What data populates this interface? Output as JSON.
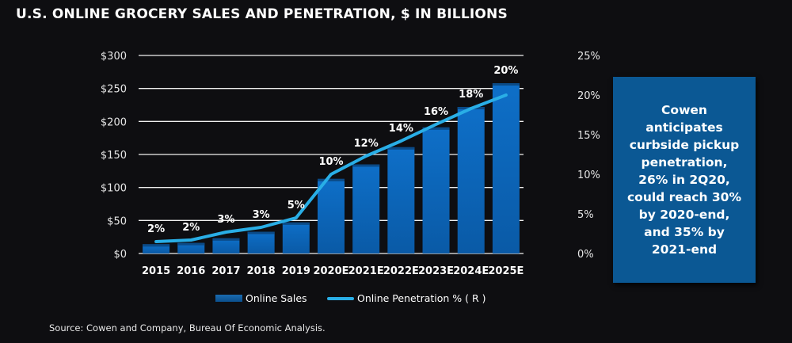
{
  "title": "U.S. ONLINE GROCERY SALES AND PENETRATION, $ IN BILLIONS",
  "callout": "Cowen anticipates curbside pickup penetration, 26% in 2Q20, could reach 30% by 2020-end, and 35% by 2021-end",
  "source": "Source: Cowen and Company, Bureau Of Economic Analysis.",
  "colors": {
    "background": "#0e0e11",
    "bars": "#0b6cc4",
    "line": "#29aee6",
    "callout": "#0b5894"
  },
  "chart_data": {
    "type": "bar+line",
    "categories": [
      "2015",
      "2016",
      "2017",
      "2018",
      "2019",
      "2020E",
      "2021E",
      "2022E",
      "2023E",
      "2024E",
      "2025E"
    ],
    "series": [
      {
        "name": "Online Sales",
        "type": "bar",
        "axis": "left",
        "values": [
          14,
          16,
          23,
          33,
          47,
          113,
          135,
          161,
          191,
          222,
          258
        ]
      },
      {
        "name": "Online Penetration % ( R )",
        "type": "line",
        "axis": "right",
        "values": [
          1.5,
          1.7,
          2.7,
          3.3,
          4.5,
          10.0,
          12.3,
          14.2,
          16.3,
          18.3,
          20.0
        ],
        "data_labels": [
          "2%",
          "2%",
          "3%",
          "3%",
          "5%",
          "10%",
          "12%",
          "14%",
          "16%",
          "18%",
          "20%"
        ]
      }
    ],
    "left_axis": {
      "range": [
        0,
        300
      ],
      "ticks": [
        "$0",
        "$50",
        "$100",
        "$150",
        "$200",
        "$250",
        "$300"
      ]
    },
    "right_axis": {
      "range": [
        0,
        25
      ],
      "ticks": [
        "0%",
        "5%",
        "10%",
        "15%",
        "20%",
        "25%"
      ]
    },
    "grid": true,
    "legend": "bottom"
  }
}
